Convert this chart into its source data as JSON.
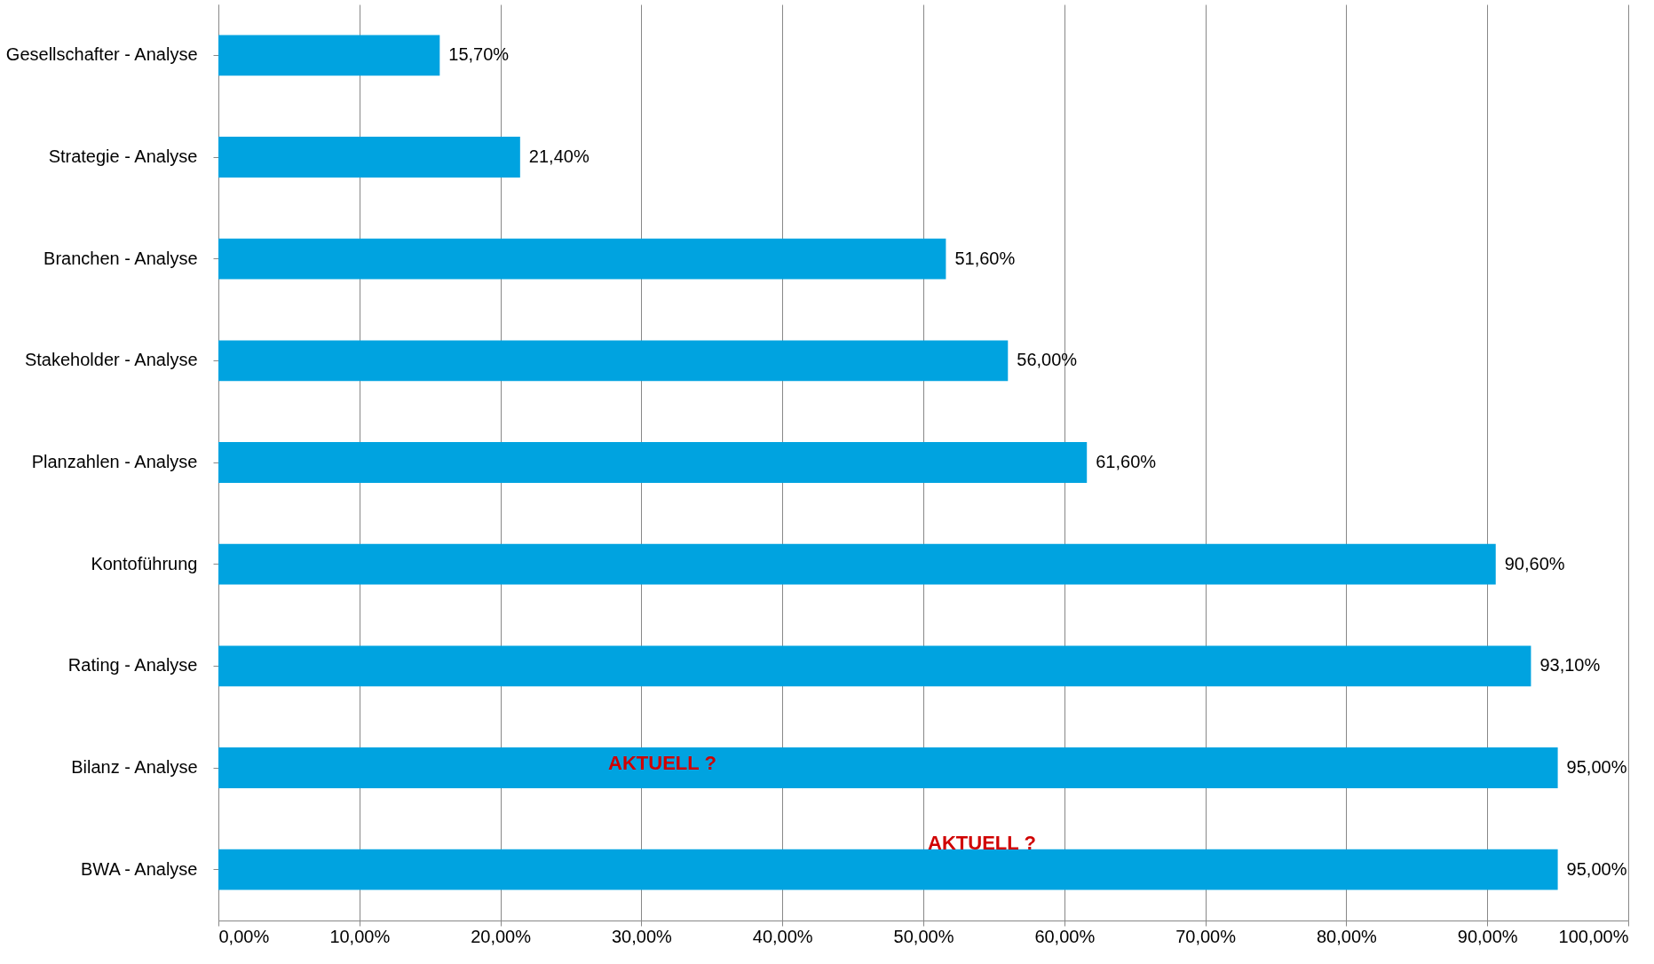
{
  "chart_data": {
    "type": "bar",
    "orientation": "horizontal",
    "categories": [
      "Gesellschafter - Analyse",
      "Strategie - Analyse",
      "Branchen - Analyse",
      "Stakeholder - Analyse",
      "Planzahlen - Analyse",
      "Kontoführung",
      "Rating - Analyse",
      "Bilanz - Analyse",
      "BWA - Analyse"
    ],
    "values": [
      15.7,
      21.4,
      51.6,
      56.0,
      61.6,
      90.6,
      93.1,
      95.0,
      95.0
    ],
    "value_labels": [
      "15,70%",
      "21,40%",
      "51,60%",
      "56,00%",
      "61,60%",
      "90,60%",
      "93,10%",
      "95,00%",
      "95,00%"
    ],
    "color": "#00a3e0",
    "xlim": [
      0,
      100
    ],
    "xticks": [
      {
        "value": 0,
        "label": "0,00%"
      },
      {
        "value": 10,
        "label": "10,00%"
      },
      {
        "value": 20,
        "label": "20,00%"
      },
      {
        "value": 30,
        "label": "30,00%"
      },
      {
        "value": 40,
        "label": "40,00%"
      },
      {
        "value": 50,
        "label": "50,00%"
      },
      {
        "value": 60,
        "label": "60,00%"
      },
      {
        "value": 70,
        "label": "70,00%"
      },
      {
        "value": 80,
        "label": "80,00%"
      },
      {
        "value": 90,
        "label": "90,00%"
      },
      {
        "value": 100,
        "label": "100,00%"
      }
    ],
    "grid": "x",
    "annotations": [
      "AKTUELL ?",
      "AKTUELL ?"
    ]
  }
}
